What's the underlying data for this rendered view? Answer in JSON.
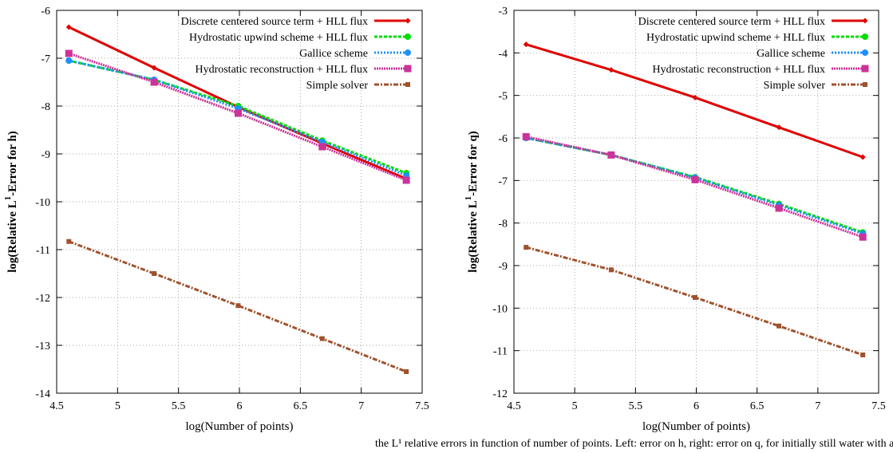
{
  "caption_fragment": "the L¹ relative errors in function of number of points. Left: error on h, right: error on q, for initially still water with a bump",
  "chart_data": [
    {
      "type": "line",
      "title": "",
      "xlabel": "log(Number of points)",
      "ylabel": "log(Relative L",
      "ylabel_sup": "1",
      "ylabel_end": "-Error for h)",
      "xlim": [
        4.5,
        7.5
      ],
      "ylim": [
        -14,
        -6
      ],
      "xticks": [
        "4.5",
        "5",
        "5.5",
        "6",
        "6.5",
        "7",
        "7.5"
      ],
      "yticks": [
        "-14",
        "-13",
        "-12",
        "-11",
        "-10",
        "-9",
        "-8",
        "-7",
        "-6"
      ],
      "grid": true,
      "legend_position": "top-right",
      "x": [
        4.6,
        5.3,
        5.99,
        6.68,
        7.37
      ],
      "series": [
        {
          "name": "Discrete centered source term + HLL flux",
          "color": "#e00000",
          "dash": "",
          "marker": "diamond",
          "values": [
            -6.35,
            -7.2,
            -8.02,
            -8.78,
            -9.52
          ]
        },
        {
          "name": "Hydrostatic upwind scheme + HLL flux",
          "color": "#00dd00",
          "dash": "4,2",
          "marker": "circle",
          "values": [
            -7.05,
            -7.45,
            -8.0,
            -8.72,
            -9.4
          ]
        },
        {
          "name": "Gallice scheme",
          "color": "#1e90ff",
          "dash": "2,2",
          "marker": "circle",
          "values": [
            -7.05,
            -7.45,
            -8.05,
            -8.75,
            -9.45
          ]
        },
        {
          "name": "Hydrostatic reconstruction + HLL flux",
          "color": "#cc3399",
          "dash": "2,1",
          "marker": "square",
          "values": [
            -6.9,
            -7.5,
            -8.15,
            -8.85,
            -9.55
          ]
        },
        {
          "name": "Simple solver",
          "color": "#a0522d",
          "dash": "6,2,2,2",
          "marker": "small-square",
          "values": [
            -10.83,
            -11.5,
            -12.17,
            -12.86,
            -13.55
          ]
        }
      ]
    },
    {
      "type": "line",
      "title": "",
      "xlabel": "log(Number of points)",
      "ylabel": "log(Relative L",
      "ylabel_sup": "1",
      "ylabel_end": "-Error for q)",
      "xlim": [
        4.5,
        7.5
      ],
      "ylim": [
        -12,
        -3
      ],
      "xticks": [
        "4.5",
        "5",
        "5.5",
        "6",
        "6.5",
        "7",
        "7.5"
      ],
      "yticks": [
        "-12",
        "-11",
        "-10",
        "-9",
        "-8",
        "-7",
        "-6",
        "-5",
        "-4",
        "-3"
      ],
      "grid": true,
      "legend_position": "top-right",
      "x": [
        4.6,
        5.3,
        5.99,
        6.68,
        7.37
      ],
      "series": [
        {
          "name": "Discrete centered source term + HLL flux",
          "color": "#e00000",
          "dash": "",
          "marker": "diamond",
          "values": [
            -3.8,
            -4.4,
            -5.05,
            -5.75,
            -6.45
          ]
        },
        {
          "name": "Hydrostatic upwind scheme + HLL flux",
          "color": "#00dd00",
          "dash": "4,2",
          "marker": "circle",
          "values": [
            -6.0,
            -6.4,
            -6.92,
            -7.55,
            -8.22
          ]
        },
        {
          "name": "Gallice scheme",
          "color": "#1e90ff",
          "dash": "2,2",
          "marker": "circle",
          "values": [
            -6.0,
            -6.4,
            -6.93,
            -7.58,
            -8.25
          ]
        },
        {
          "name": "Hydrostatic reconstruction + HLL flux",
          "color": "#cc3399",
          "dash": "2,1",
          "marker": "square",
          "values": [
            -5.97,
            -6.4,
            -6.98,
            -7.65,
            -8.33
          ]
        },
        {
          "name": "Simple solver",
          "color": "#a0522d",
          "dash": "6,2,2,2",
          "marker": "small-square",
          "values": [
            -8.57,
            -9.1,
            -9.75,
            -10.42,
            -11.1
          ]
        }
      ]
    }
  ]
}
